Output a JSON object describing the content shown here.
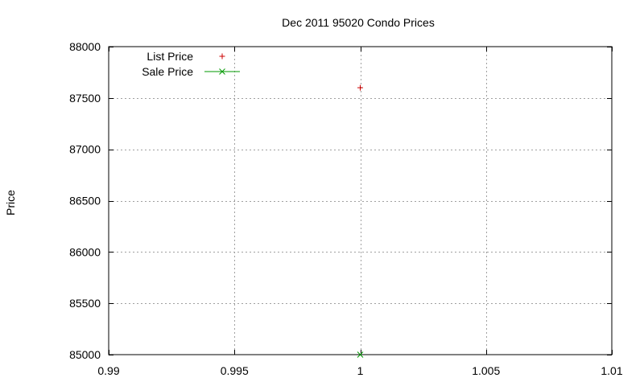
{
  "chart_data": {
    "type": "scatter",
    "title": "Dec 2011 95020 Condo Prices",
    "xlabel": "",
    "ylabel": "Price",
    "xlim": [
      0.99,
      1.01
    ],
    "ylim": [
      85000,
      88000
    ],
    "xticks": [
      0.99,
      0.995,
      1,
      1.005,
      1.01
    ],
    "xtick_labels": [
      "0.99",
      "0.995",
      "1",
      "1.005",
      "1.01"
    ],
    "yticks": [
      85000,
      85500,
      86000,
      86500,
      87000,
      87500,
      88000
    ],
    "ytick_labels": [
      "85000",
      "85500",
      "86000",
      "86500",
      "87000",
      "87500",
      "88000"
    ],
    "grid": true,
    "legend_position": "top-left",
    "series": [
      {
        "name": "List Price",
        "marker": "plus",
        "color": "#cc0000",
        "points": [
          {
            "x": 1,
            "y": 87600
          }
        ]
      },
      {
        "name": "Sale Price",
        "marker": "cross",
        "line": true,
        "color": "#009900",
        "points": [
          {
            "x": 1,
            "y": 85000
          }
        ]
      }
    ]
  }
}
